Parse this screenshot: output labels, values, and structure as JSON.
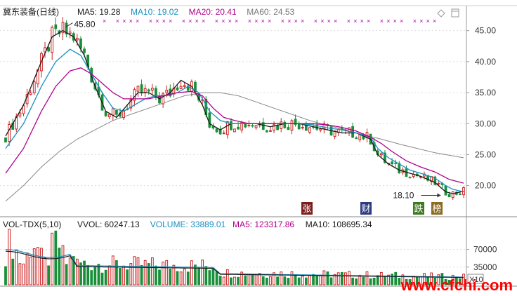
{
  "chart_data": [
    {
      "type": "candlestick",
      "title": "冀东装备(日线)",
      "indicators": [
        {
          "label": "MA5: 19.28",
          "color": "#1a1a1a"
        },
        {
          "label": "MA10: 19.02",
          "color": "#1a8fc0"
        },
        {
          "label": "MA20: 20.41",
          "color": "#b0008a"
        },
        {
          "label": "MA60: 24.53",
          "color": "#777777"
        }
      ],
      "ylim": [
        16,
        47
      ],
      "y_ticks": [
        "45.00",
        "40.00",
        "35.00",
        "30.00",
        "25.00",
        "20.00"
      ],
      "y_tick_values": [
        45,
        40,
        35,
        30,
        25,
        20
      ],
      "annotations": [
        {
          "text": "45.80",
          "price": 45.8
        },
        {
          "text": "18.10",
          "price": 18.1
        }
      ],
      "event_markers": [
        {
          "text": "张",
          "color": "#7a1e1e"
        },
        {
          "text": "财",
          "color": "#2d3c80"
        },
        {
          "text": "跌",
          "color": "#3d7a1e"
        },
        {
          "text": "榜",
          "color": "#8a6a1e"
        }
      ],
      "ma_series": {
        "ma5": [
          [
            0,
            28
          ],
          [
            5,
            33
          ],
          [
            10,
            40
          ],
          [
            13,
            44
          ],
          [
            16,
            45
          ],
          [
            19,
            44
          ],
          [
            22,
            41
          ],
          [
            25,
            36
          ],
          [
            28,
            32
          ],
          [
            31,
            31
          ],
          [
            34,
            33
          ],
          [
            37,
            35
          ],
          [
            40,
            35
          ],
          [
            43,
            34
          ],
          [
            46,
            35
          ],
          [
            49,
            37
          ],
          [
            52,
            36
          ],
          [
            55,
            33
          ],
          [
            57,
            30
          ],
          [
            60,
            29
          ],
          [
            63,
            30
          ],
          [
            66,
            30
          ],
          [
            70,
            30
          ],
          [
            74,
            29.5
          ],
          [
            78,
            30
          ],
          [
            82,
            30
          ],
          [
            86,
            29.5
          ],
          [
            90,
            29
          ],
          [
            94,
            28.5
          ],
          [
            98,
            28.5
          ],
          [
            102,
            27.5
          ],
          [
            104,
            25
          ],
          [
            107,
            23.5
          ],
          [
            110,
            22.5
          ],
          [
            113,
            22
          ],
          [
            116,
            21.5
          ],
          [
            120,
            20.5
          ],
          [
            123,
            19
          ],
          [
            125,
            18.7
          ],
          [
            128,
            19.1
          ]
        ],
        "ma10": [
          [
            0,
            26
          ],
          [
            5,
            30
          ],
          [
            10,
            36
          ],
          [
            14,
            40
          ],
          [
            18,
            42
          ],
          [
            21,
            41
          ],
          [
            24,
            38
          ],
          [
            27,
            35
          ],
          [
            30,
            32.5
          ],
          [
            33,
            32
          ],
          [
            36,
            33
          ],
          [
            39,
            34
          ],
          [
            42,
            34.5
          ],
          [
            45,
            34.5
          ],
          [
            48,
            35
          ],
          [
            51,
            36
          ],
          [
            54,
            35
          ],
          [
            57,
            32
          ],
          [
            60,
            30.5
          ],
          [
            63,
            30
          ],
          [
            66,
            30
          ],
          [
            70,
            30
          ],
          [
            74,
            30
          ],
          [
            78,
            30
          ],
          [
            82,
            30
          ],
          [
            86,
            29.8
          ],
          [
            90,
            29.3
          ],
          [
            94,
            29
          ],
          [
            98,
            28.5
          ],
          [
            102,
            27.8
          ],
          [
            104,
            26
          ],
          [
            107,
            24.5
          ],
          [
            110,
            23.5
          ],
          [
            113,
            22.5
          ],
          [
            116,
            22
          ],
          [
            120,
            21.2
          ],
          [
            123,
            20
          ],
          [
            125,
            19.4
          ],
          [
            128,
            19
          ]
        ],
        "ma20": [
          [
            0,
            22
          ],
          [
            5,
            26
          ],
          [
            10,
            32
          ],
          [
            14,
            36
          ],
          [
            18,
            38.5
          ],
          [
            21,
            39
          ],
          [
            24,
            38
          ],
          [
            27,
            36.5
          ],
          [
            30,
            35
          ],
          [
            33,
            34
          ],
          [
            36,
            34
          ],
          [
            40,
            34
          ],
          [
            44,
            34.5
          ],
          [
            48,
            35
          ],
          [
            52,
            35.2
          ],
          [
            55,
            34.5
          ],
          [
            58,
            32.5
          ],
          [
            61,
            31
          ],
          [
            64,
            30.5
          ],
          [
            68,
            30
          ],
          [
            74,
            30
          ],
          [
            80,
            30
          ],
          [
            86,
            30
          ],
          [
            90,
            29.8
          ],
          [
            94,
            29.4
          ],
          [
            98,
            28.8
          ],
          [
            102,
            27.8
          ],
          [
            105,
            26.8
          ],
          [
            108,
            25.5
          ],
          [
            112,
            24
          ],
          [
            116,
            23
          ],
          [
            120,
            22.2
          ],
          [
            124,
            21
          ],
          [
            128,
            20.4
          ]
        ],
        "ma60": [
          [
            0,
            17.5
          ],
          [
            5,
            20
          ],
          [
            10,
            23
          ],
          [
            15,
            25.5
          ],
          [
            20,
            27.5
          ],
          [
            25,
            29
          ],
          [
            30,
            30.5
          ],
          [
            35,
            31.5
          ],
          [
            40,
            32.5
          ],
          [
            45,
            33.5
          ],
          [
            50,
            34.5
          ],
          [
            55,
            35
          ],
          [
            60,
            35
          ],
          [
            65,
            34.5
          ],
          [
            70,
            33.5
          ],
          [
            75,
            32.5
          ],
          [
            80,
            31.5
          ],
          [
            85,
            30.5
          ],
          [
            90,
            29.7
          ],
          [
            95,
            29
          ],
          [
            100,
            28.2
          ],
          [
            105,
            27.5
          ],
          [
            110,
            26.7
          ],
          [
            115,
            26
          ],
          [
            120,
            25.3
          ],
          [
            125,
            24.8
          ],
          [
            128,
            24.5
          ]
        ]
      }
    },
    {
      "type": "bar",
      "title": "VOL-TDX(5,10)",
      "indicators": [
        {
          "label": "VVOL: 60247.13",
          "color": "#1a1a1a"
        },
        {
          "label": "VOLUME: 33889.01",
          "color": "#1a8fc0"
        },
        {
          "label": "MA5: 123317.86",
          "color": "#b0008a"
        },
        {
          "label": "MA10: 108695.34",
          "color": "#1a1a1a"
        }
      ],
      "ylim": [
        0,
        100000
      ],
      "y_ticks": [
        "70000",
        "35000"
      ],
      "y_tick_values": [
        70000,
        35000
      ],
      "unit_label": "X10"
    }
  ],
  "header_icons": [
    "diamond-icon",
    "window-icon"
  ],
  "watermark": "www.cfchi.com"
}
